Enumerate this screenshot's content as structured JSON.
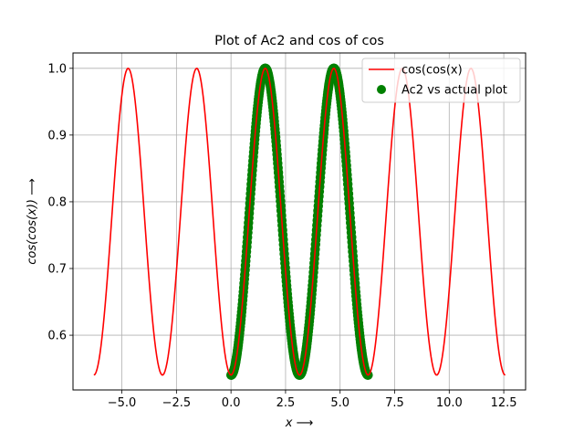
{
  "chart_data": {
    "type": "line",
    "title": "Plot of Ac2 and cos of cos",
    "xlabel": "x ⟶",
    "ylabel": "cos(cos(x)) ⟶",
    "xlim": [
      -7.24,
      13.5
    ],
    "ylim": [
      0.518,
      1.023
    ],
    "grid": true,
    "legend_position": "top-right",
    "x_ticks": [
      {
        "value": -5.0,
        "label": "−5.0"
      },
      {
        "value": -2.5,
        "label": "−2.5"
      },
      {
        "value": 0.0,
        "label": "0.0"
      },
      {
        "value": 2.5,
        "label": "2.5"
      },
      {
        "value": 5.0,
        "label": "5.0"
      },
      {
        "value": 7.5,
        "label": "7.5"
      },
      {
        "value": 10.0,
        "label": "10.0"
      },
      {
        "value": 12.5,
        "label": "12.5"
      }
    ],
    "y_ticks": [
      {
        "value": 0.6,
        "label": "0.6"
      },
      {
        "value": 0.7,
        "label": "0.7"
      },
      {
        "value": 0.8,
        "label": "0.8"
      },
      {
        "value": 0.9,
        "label": "0.9"
      },
      {
        "value": 1.0,
        "label": "1.0"
      }
    ],
    "series": [
      {
        "name": "cos(cos(x)",
        "kind": "line",
        "color": "#ff0000",
        "function": "cos(cos(x))",
        "x_range": [
          -6.283,
          12.566
        ],
        "samples": 400
      },
      {
        "name": "Ac2 vs actual plot",
        "kind": "scatter",
        "color": "#008000",
        "function": "cos(cos(x))",
        "x_range": [
          0.0,
          6.283
        ],
        "samples": 400
      }
    ]
  }
}
